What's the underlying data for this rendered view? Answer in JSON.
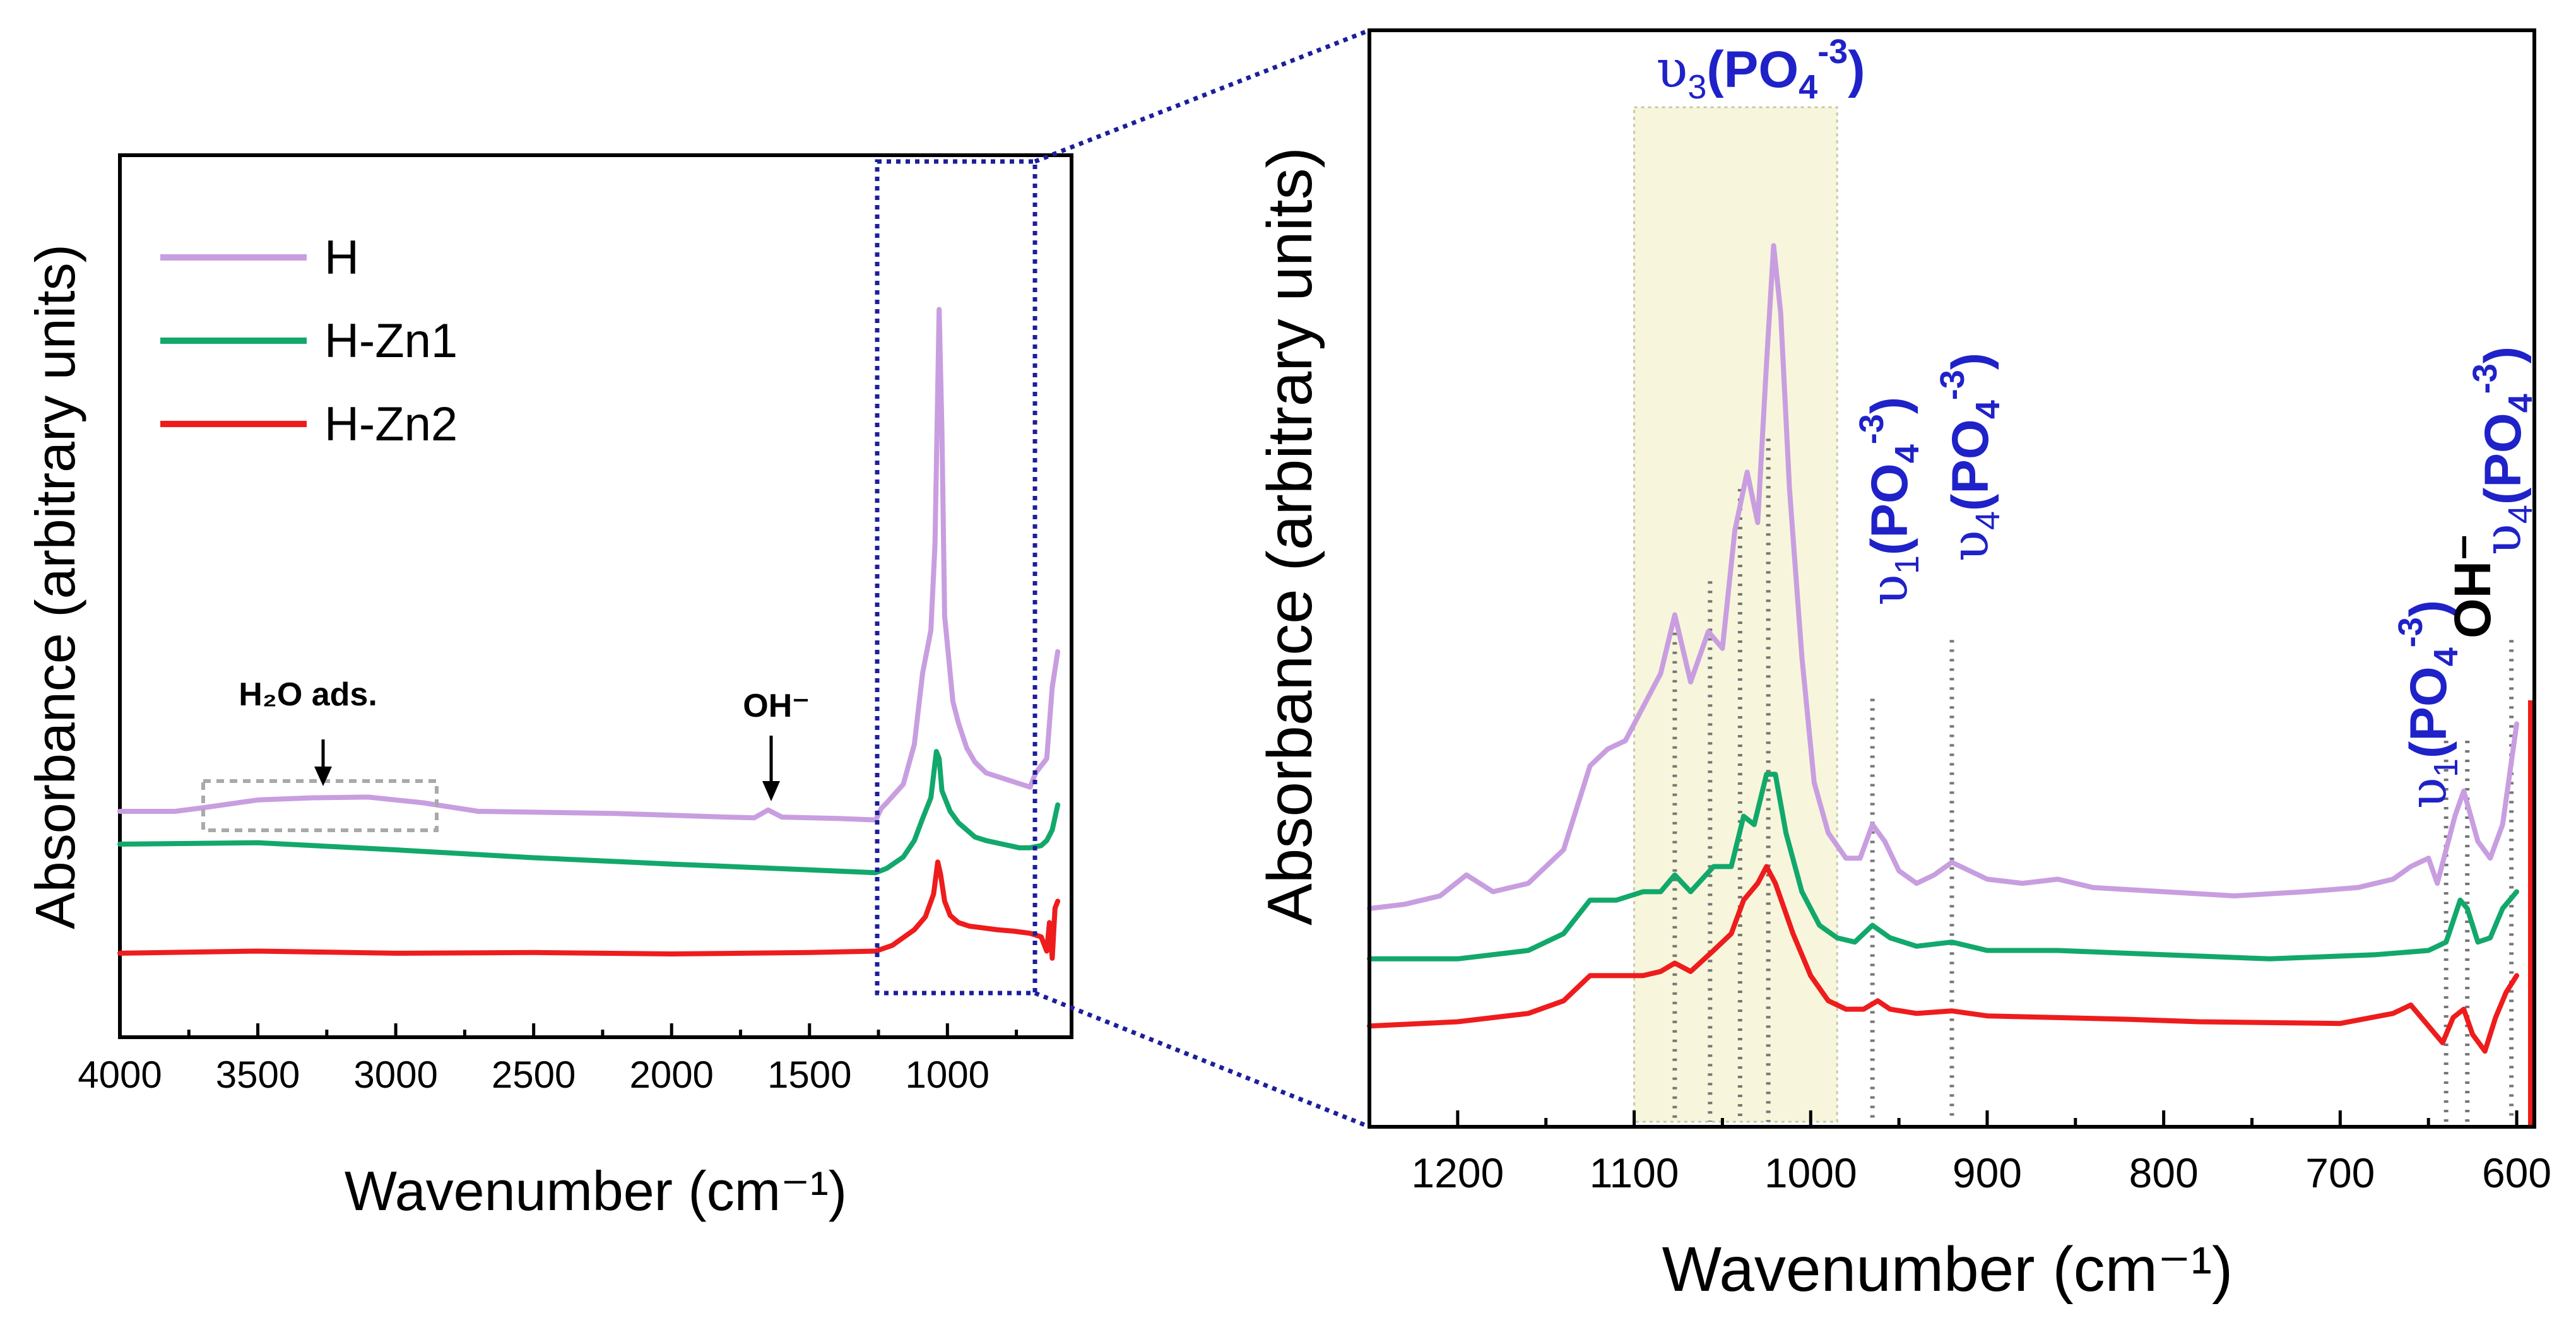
{
  "colors": {
    "H": "#c89ee0",
    "H-Zn1": "#12a86b",
    "H-Zn2": "#ee1c1c",
    "annotation_blue": "#1f22c8",
    "zoom_box": "#1c1f9a",
    "band_fill": "#f7f6dc"
  },
  "legend": {
    "items": [
      "H",
      "H-Zn1",
      "H-Zn2"
    ]
  },
  "annotations": {
    "h2o": "H₂O ads.",
    "oh_left": "OH⁻",
    "v3": {
      "nu": "υ",
      "sub": "3",
      "group": "(PO",
      "group_sub": "4",
      "charge": "-3",
      "close": ")"
    },
    "v1": {
      "nu": "υ",
      "sub": "1",
      "group": "(PO",
      "group_sub": "4",
      "charge": "-3",
      "close": ")"
    },
    "v4a": {
      "nu": "υ",
      "sub": "4",
      "group": "(PO",
      "group_sub": "4",
      "charge": "-3",
      "close": ")"
    },
    "v1b": {
      "nu": "υ",
      "sub": "1",
      "group": "(PO",
      "group_sub": "4",
      "charge": "-3",
      "close": ")"
    },
    "oh_right": "OH⁻",
    "v4b": {
      "nu": "υ",
      "sub": "4",
      "group": "(PO",
      "group_sub": "4",
      "charge": "-3",
      "close": ")"
    }
  },
  "chart_data": [
    {
      "id": "full-spectrum",
      "type": "line",
      "xlabel": "Wavenumber (cm⁻¹)",
      "ylabel": "Absorbance (arbitrary units)",
      "xlim": [
        4000,
        550
      ],
      "ylim": [
        0,
        1
      ],
      "xticks": [
        4000,
        3500,
        3000,
        2500,
        2000,
        1500,
        1000
      ],
      "zoom_region": [
        1250,
        700
      ],
      "series": [
        {
          "name": "H",
          "x": [
            4000,
            3800,
            3700,
            3500,
            3300,
            3100,
            2900,
            2700,
            2200,
            1800,
            1700,
            1650,
            1600,
            1400,
            1260,
            1240,
            1220,
            1160,
            1120,
            1090,
            1060,
            1045,
            1030,
            1020,
            1010,
            980,
            960,
            930,
            900,
            860,
            820,
            780,
            740,
            700,
            680,
            640,
            620,
            600
          ],
          "y": [
            0.246,
            0.246,
            0.251,
            0.262,
            0.265,
            0.266,
            0.258,
            0.246,
            0.243,
            0.238,
            0.237,
            0.248,
            0.238,
            0.236,
            0.234,
            0.25,
            0.258,
            0.284,
            0.34,
            0.44,
            0.5,
            0.62,
            0.95,
            0.78,
            0.52,
            0.4,
            0.37,
            0.335,
            0.315,
            0.3,
            0.295,
            0.29,
            0.285,
            0.28,
            0.3,
            0.32,
            0.42,
            0.47
          ]
        },
        {
          "name": "H-Zn1",
          "x": [
            4000,
            3500,
            3000,
            2500,
            2000,
            1500,
            1260,
            1220,
            1160,
            1120,
            1090,
            1060,
            1040,
            1030,
            1020,
            990,
            960,
            930,
            900,
            860,
            800,
            740,
            700,
            660,
            640,
            620,
            600
          ],
          "y": [
            0.2,
            0.202,
            0.192,
            0.181,
            0.172,
            0.164,
            0.16,
            0.166,
            0.182,
            0.205,
            0.236,
            0.265,
            0.33,
            0.32,
            0.275,
            0.246,
            0.23,
            0.22,
            0.21,
            0.205,
            0.2,
            0.195,
            0.195,
            0.198,
            0.205,
            0.22,
            0.255
          ]
        },
        {
          "name": "H-Zn2",
          "x": [
            4000,
            3500,
            3000,
            2500,
            2000,
            1500,
            1260,
            1200,
            1120,
            1080,
            1050,
            1035,
            1025,
            1010,
            990,
            960,
            920,
            880,
            820,
            760,
            700,
            660,
            640,
            630,
            620,
            610,
            600
          ],
          "y": [
            0.047,
            0.05,
            0.047,
            0.048,
            0.046,
            0.048,
            0.05,
            0.058,
            0.08,
            0.098,
            0.13,
            0.175,
            0.158,
            0.12,
            0.1,
            0.09,
            0.085,
            0.083,
            0.08,
            0.078,
            0.075,
            0.07,
            0.05,
            0.09,
            0.04,
            0.11,
            0.12
          ]
        }
      ]
    },
    {
      "id": "zoom-spectrum",
      "type": "line",
      "xlabel": "Wavenumber (cm⁻¹)",
      "ylabel": "Absorbance (arbitrary units)",
      "xlim": [
        1250,
        590
      ],
      "ylim": [
        0,
        1
      ],
      "xticks": [
        1200,
        1100,
        1000,
        900,
        800,
        700,
        600
      ],
      "band": [
        1100,
        985
      ],
      "marker_lines": [
        {
          "x": 1077,
          "top": 0.54
        },
        {
          "x": 1057,
          "top": 0.59
        },
        {
          "x": 1040,
          "top": 0.7
        },
        {
          "x": 1024,
          "top": 0.76
        },
        {
          "x": 965,
          "top": 0.45
        },
        {
          "x": 920,
          "top": 0.52
        },
        {
          "x": 640,
          "top": 0.4
        },
        {
          "x": 628,
          "top": 0.4
        },
        {
          "x": 603,
          "top": 0.52
        }
      ],
      "series": [
        {
          "name": "H",
          "x": [
            1250,
            1230,
            1210,
            1195,
            1180,
            1160,
            1140,
            1125,
            1115,
            1105,
            1095,
            1085,
            1077,
            1068,
            1058,
            1050,
            1043,
            1036,
            1030,
            1025,
            1021,
            1017,
            1012,
            1005,
            998,
            990,
            980,
            972,
            965,
            958,
            950,
            940,
            930,
            920,
            910,
            900,
            880,
            860,
            840,
            800,
            760,
            720,
            690,
            670,
            660,
            650,
            645,
            640,
            635,
            630,
            622,
            615,
            608,
            600
          ],
          "y": [
            0.2,
            0.205,
            0.215,
            0.24,
            0.22,
            0.23,
            0.27,
            0.37,
            0.39,
            0.4,
            0.44,
            0.48,
            0.55,
            0.47,
            0.53,
            0.51,
            0.65,
            0.72,
            0.66,
            0.85,
            0.99,
            0.91,
            0.7,
            0.5,
            0.35,
            0.29,
            0.26,
            0.26,
            0.3,
            0.28,
            0.245,
            0.23,
            0.24,
            0.255,
            0.245,
            0.235,
            0.23,
            0.235,
            0.225,
            0.22,
            0.215,
            0.22,
            0.225,
            0.235,
            0.25,
            0.26,
            0.23,
            0.27,
            0.31,
            0.34,
            0.28,
            0.26,
            0.3,
            0.42
          ]
        },
        {
          "name": "H-Zn1",
          "x": [
            1250,
            1200,
            1160,
            1140,
            1125,
            1110,
            1095,
            1085,
            1077,
            1068,
            1055,
            1045,
            1038,
            1032,
            1025,
            1020,
            1014,
            1005,
            995,
            985,
            975,
            965,
            955,
            940,
            920,
            900,
            860,
            800,
            740,
            680,
            650,
            640,
            632,
            628,
            622,
            615,
            608,
            600
          ],
          "y": [
            0.14,
            0.14,
            0.15,
            0.17,
            0.21,
            0.21,
            0.22,
            0.22,
            0.24,
            0.22,
            0.25,
            0.25,
            0.31,
            0.3,
            0.36,
            0.36,
            0.29,
            0.22,
            0.18,
            0.165,
            0.16,
            0.18,
            0.165,
            0.155,
            0.16,
            0.15,
            0.15,
            0.145,
            0.14,
            0.145,
            0.15,
            0.16,
            0.21,
            0.2,
            0.16,
            0.165,
            0.2,
            0.22
          ]
        },
        {
          "name": "H-Zn2",
          "x": [
            1250,
            1200,
            1160,
            1140,
            1125,
            1110,
            1095,
            1085,
            1077,
            1068,
            1055,
            1045,
            1038,
            1030,
            1025,
            1020,
            1010,
            1000,
            990,
            980,
            970,
            962,
            955,
            940,
            920,
            900,
            860,
            820,
            780,
            740,
            700,
            670,
            660,
            650,
            642,
            636,
            630,
            625,
            618,
            612,
            606,
            600
          ],
          "y": [
            0.06,
            0.065,
            0.075,
            0.09,
            0.12,
            0.12,
            0.12,
            0.125,
            0.135,
            0.125,
            0.15,
            0.17,
            0.21,
            0.23,
            0.25,
            0.23,
            0.17,
            0.12,
            0.09,
            0.08,
            0.08,
            0.09,
            0.08,
            0.075,
            0.078,
            0.072,
            0.07,
            0.068,
            0.065,
            0.064,
            0.063,
            0.075,
            0.085,
            0.06,
            0.04,
            0.07,
            0.08,
            0.05,
            0.03,
            0.07,
            0.1,
            0.12
          ]
        }
      ]
    }
  ]
}
